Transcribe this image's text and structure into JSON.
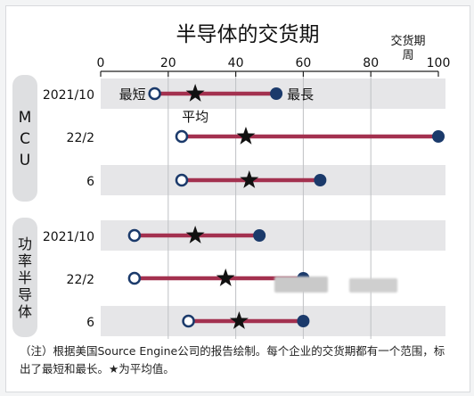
{
  "chart_data": {
    "type": "range-dot",
    "title": "半导体的交货期",
    "unit_label": [
      "交货期",
      "周"
    ],
    "xlim": [
      0,
      100
    ],
    "x_ticks": [
      0,
      20,
      40,
      60,
      80,
      100
    ],
    "grid": true,
    "legend": {
      "min": "最短",
      "avg": "平均",
      "max": "最長"
    },
    "groups": [
      {
        "name": "MCU",
        "rows": [
          {
            "label": "2021/10",
            "min": 16,
            "avg": 28,
            "max": 52
          },
          {
            "label": "22/2",
            "min": 24,
            "avg": 43,
            "max": 100
          },
          {
            "label": "6",
            "min": 24,
            "avg": 44,
            "max": 65
          }
        ]
      },
      {
        "name": "功率半导体",
        "rows": [
          {
            "label": "2021/10",
            "min": 10,
            "avg": 28,
            "max": 47
          },
          {
            "label": "22/2",
            "min": 10,
            "avg": 37,
            "max": 60
          },
          {
            "label": "6",
            "min": 26,
            "avg": 41,
            "max": 60
          }
        ]
      }
    ],
    "colors": {
      "range": "#a3314f",
      "max_dot": "#1b3a6b",
      "min_dot_stroke": "#1b3a6b",
      "band": "#e6e6e8"
    }
  },
  "footnote": "（注）根据美国Source Engine公司的报告绘制。每个企业的交货期都有一个范围，标出了最短和最长。★为平均值。"
}
